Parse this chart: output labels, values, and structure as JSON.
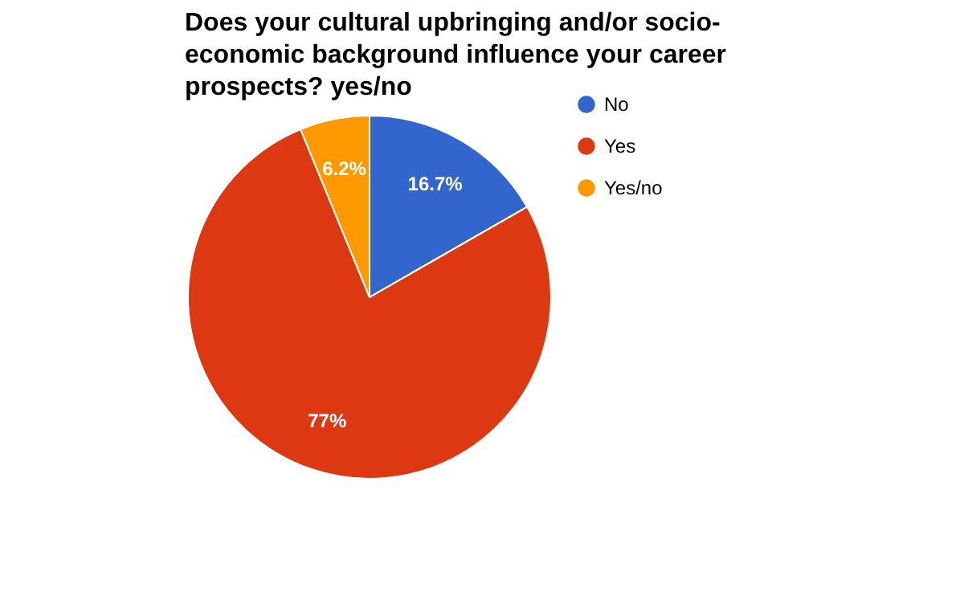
{
  "chart_data": {
    "type": "pie",
    "title": "Does your cultural upbringing and/or socio-economic background influence your career prospects? yes/no",
    "categories": [
      "No",
      "Yes",
      "Yes/no"
    ],
    "values": [
      16.7,
      77,
      6.2
    ],
    "colors": [
      "#3366cc",
      "#dc3912",
      "#ff9900"
    ],
    "value_labels": [
      "16.7%",
      "77%",
      "6.2%"
    ],
    "legend": "right"
  }
}
